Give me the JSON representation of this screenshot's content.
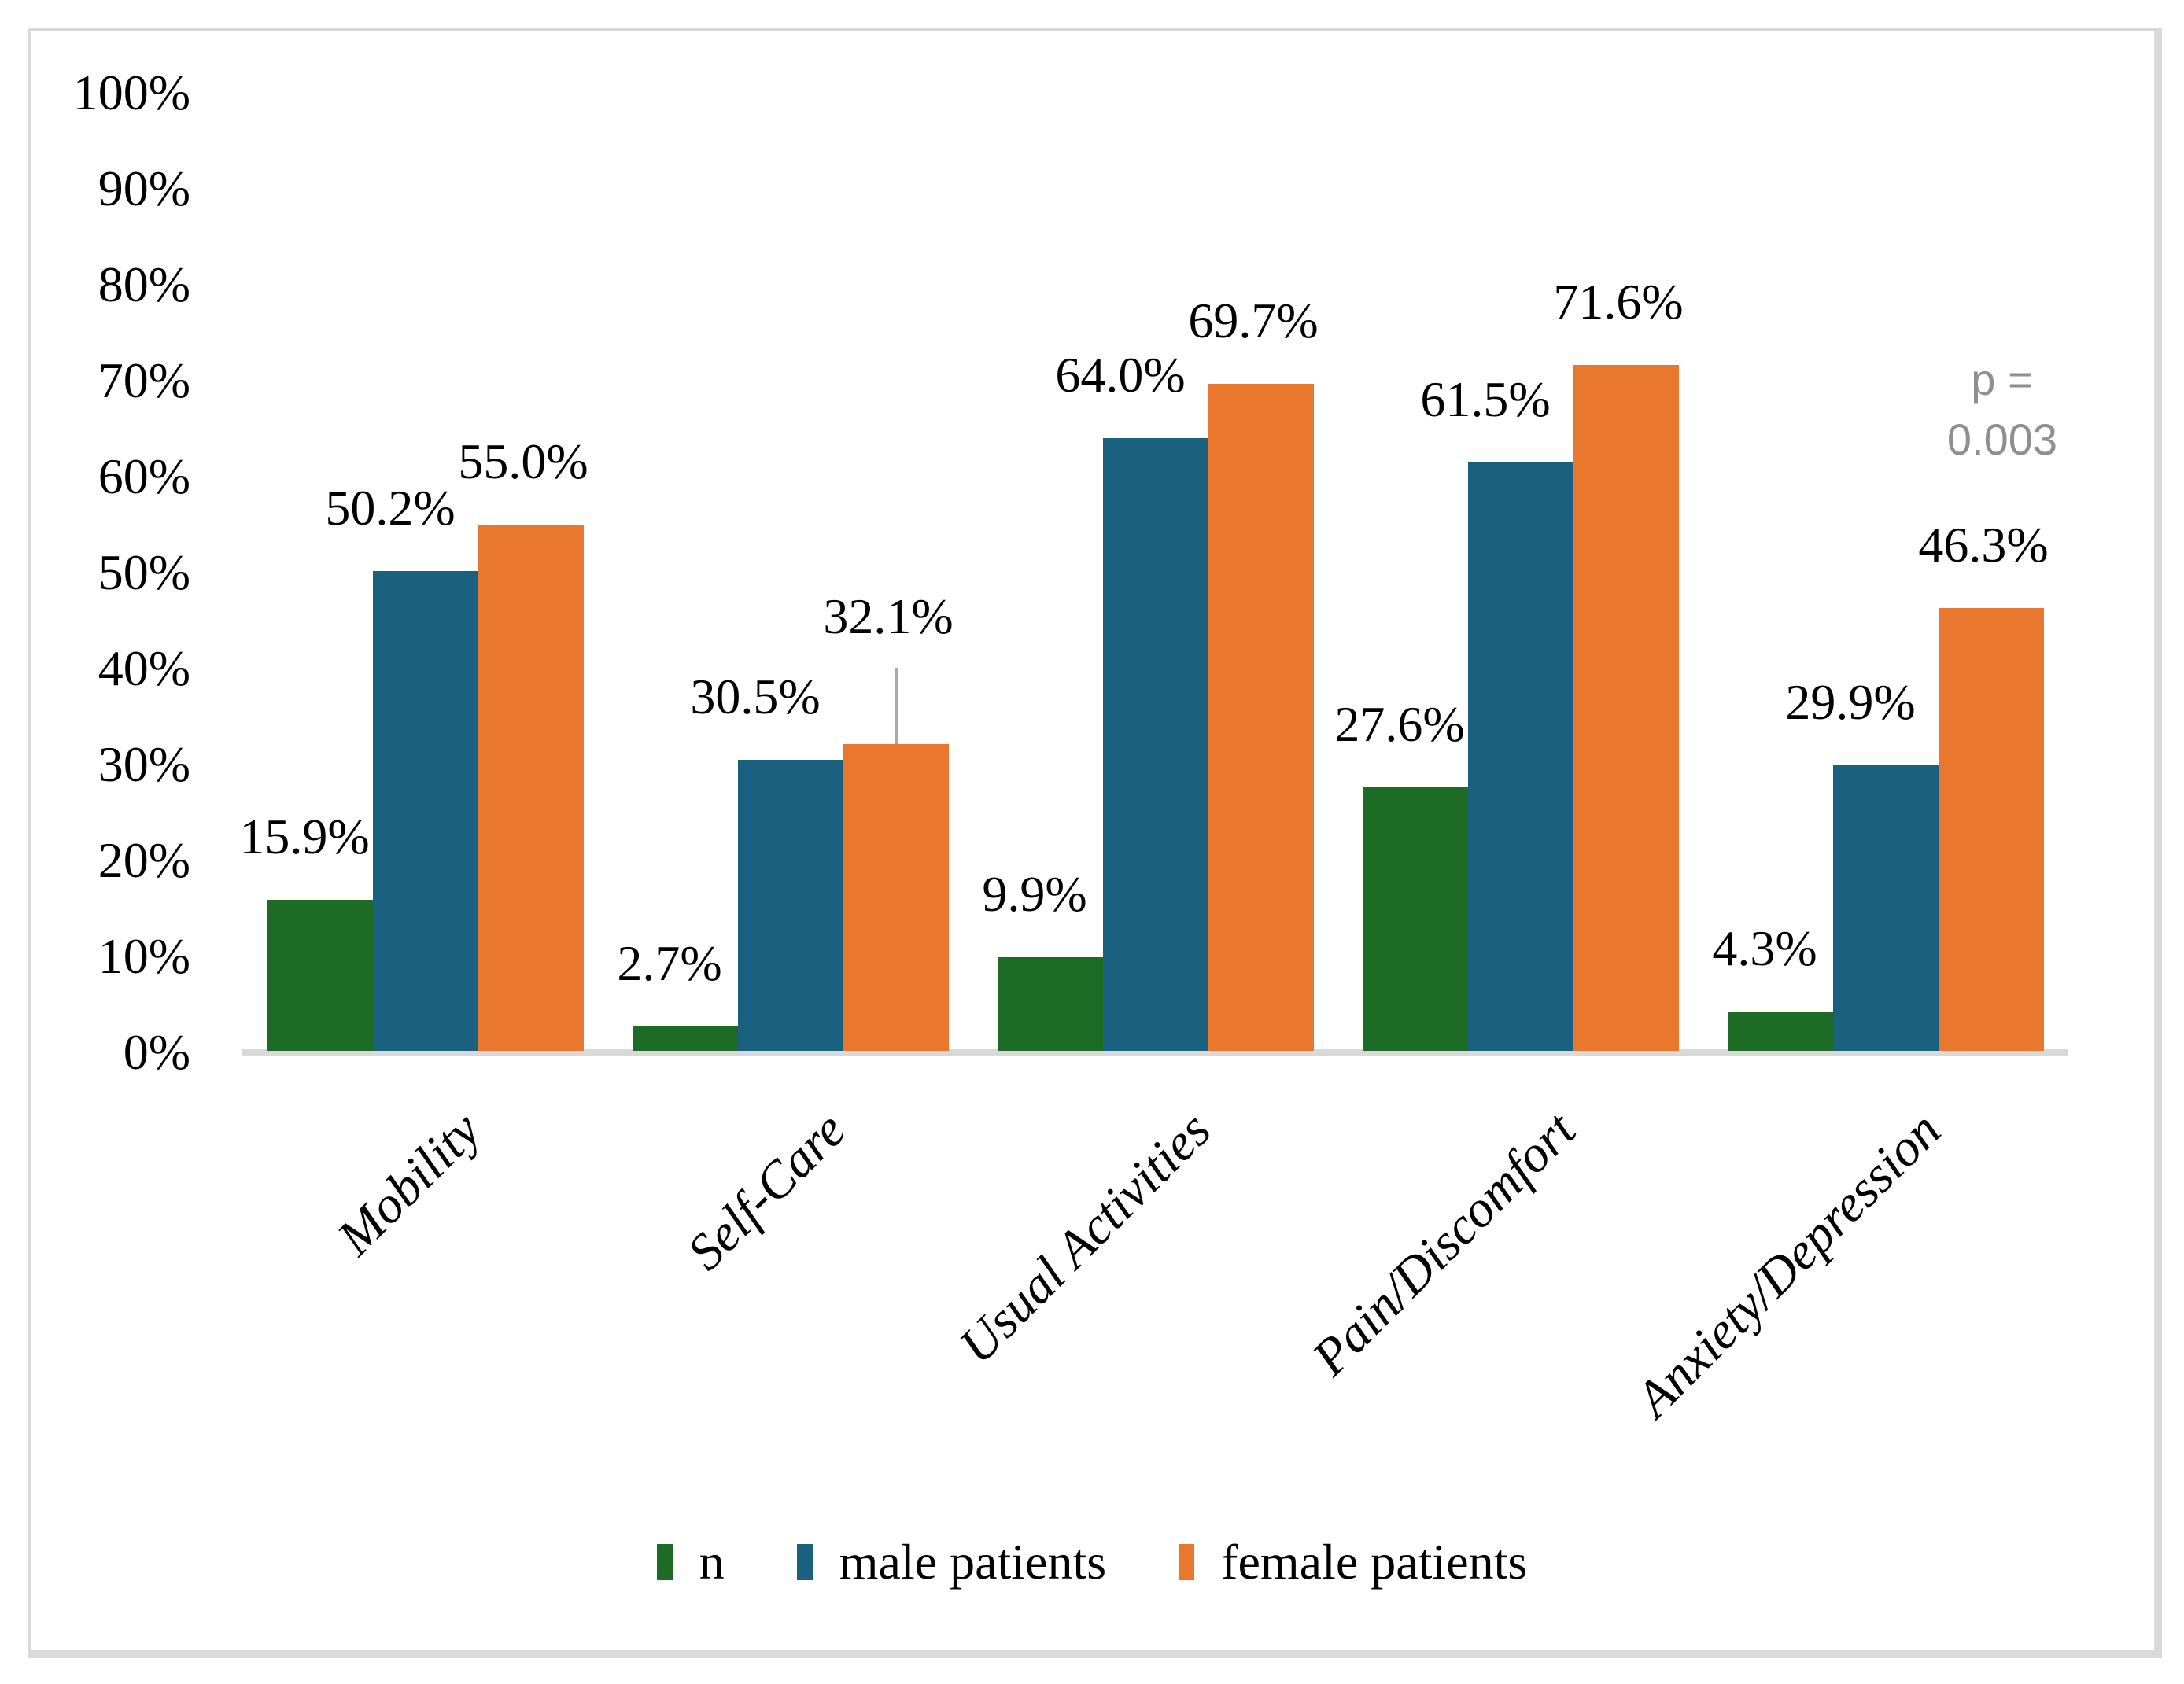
{
  "figure": {
    "background": "#FFFFFF",
    "border_color": "#D9D9D9"
  },
  "chart_data": {
    "type": "bar",
    "title": "",
    "xlabel": "",
    "ylabel": "",
    "categories": [
      "Mobility",
      "Self-Care",
      "Usual Activities",
      "Pain/Discomfort",
      "Anxiety/Depression"
    ],
    "series": [
      {
        "name": "n",
        "color": "#1E6B25",
        "values": [
          15.9,
          2.7,
          9.9,
          27.6,
          4.3
        ],
        "labels": [
          "15.9%",
          "2.7%",
          "9.9%",
          "27.6%",
          "4.3%"
        ]
      },
      {
        "name": "male patients",
        "color": "#19617F",
        "values": [
          50.2,
          30.5,
          64.0,
          61.5,
          29.9
        ],
        "labels": [
          "50.2%",
          "30.5%",
          "64.0%",
          "61.5%",
          "29.9%"
        ]
      },
      {
        "name": "female patients",
        "color": "#E9772E",
        "values": [
          55.0,
          32.1,
          69.7,
          71.6,
          46.3
        ],
        "labels": [
          "55.0%",
          "32.1%",
          "69.7%",
          "71.6%",
          "46.3%"
        ]
      }
    ],
    "ylim": [
      0,
      100
    ],
    "yticks": [
      "100%",
      "90%",
      "80%",
      "70%",
      "60%",
      "50%",
      "40%",
      "30%",
      "20%",
      "10%",
      "0%"
    ],
    "grid": false,
    "legend_position": "bottom",
    "axis_line_color": "#D9D9D9",
    "annotation": {
      "line1": "p =",
      "line2": "0.003",
      "color": "#8F8F8F"
    },
    "moved_label": {
      "category": "Self-Care",
      "series": "female patients",
      "leader_line_color": "#A9A9A9"
    }
  }
}
